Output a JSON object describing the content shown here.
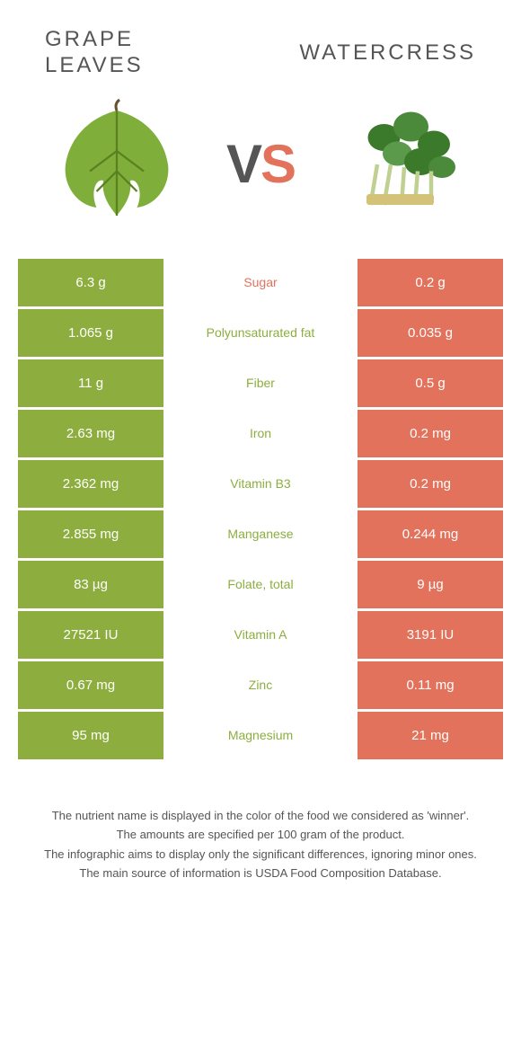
{
  "colors": {
    "left": "#8dae3e",
    "right": "#e2725b",
    "mid_text_left": "#8dae3e",
    "mid_text_right": "#e2725b"
  },
  "foods": {
    "left": {
      "name_line1": "GRAPE",
      "name_line2": "LEAVES"
    },
    "right": {
      "name": "WATERCRESS"
    }
  },
  "vs": "VS",
  "rows": [
    {
      "left": "6.3 g",
      "label": "Sugar",
      "right": "0.2 g",
      "winner": "right"
    },
    {
      "left": "1.065 g",
      "label": "Polyunsaturated fat",
      "right": "0.035 g",
      "winner": "left"
    },
    {
      "left": "11 g",
      "label": "Fiber",
      "right": "0.5 g",
      "winner": "left"
    },
    {
      "left": "2.63 mg",
      "label": "Iron",
      "right": "0.2 mg",
      "winner": "left"
    },
    {
      "left": "2.362 mg",
      "label": "Vitamin B3",
      "right": "0.2 mg",
      "winner": "left"
    },
    {
      "left": "2.855 mg",
      "label": "Manganese",
      "right": "0.244 mg",
      "winner": "left"
    },
    {
      "left": "83 µg",
      "label": "Folate, total",
      "right": "9 µg",
      "winner": "left"
    },
    {
      "left": "27521 IU",
      "label": "Vitamin A",
      "right": "3191 IU",
      "winner": "left"
    },
    {
      "left": "0.67 mg",
      "label": "Zinc",
      "right": "0.11 mg",
      "winner": "left"
    },
    {
      "left": "95 mg",
      "label": "Magnesium",
      "right": "21 mg",
      "winner": "left"
    }
  ],
  "footnotes": [
    "The nutrient name is displayed in the color of the food we considered as 'winner'.",
    "The amounts are specified per 100 gram of the product.",
    "The infographic aims to display only the significant differences, ignoring minor ones.",
    "The main source of information is USDA Food Composition Database."
  ]
}
